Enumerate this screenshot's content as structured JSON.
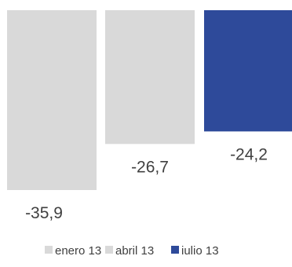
{
  "chart_data": {
    "type": "bar",
    "categories": [
      "enero 13",
      "abril 13",
      "iulio 13"
    ],
    "values": [
      -35.9,
      -26.7,
      -24.2
    ],
    "data_labels": [
      "-35,9",
      "-26,7",
      "-24,2"
    ],
    "colors": [
      "#d9d9d9",
      "#d9d9d9",
      "#2e4a9a"
    ],
    "title": "",
    "xlabel": "",
    "ylabel": "",
    "ylim": [
      -35.9,
      0
    ],
    "grid": false,
    "legend": {
      "placement": "bottom",
      "entries": [
        {
          "label": "enero 13",
          "color": "#d9d9d9"
        },
        {
          "label": "abril 13",
          "color": "#d9d9d9"
        },
        {
          "label": "iulio 13",
          "color": "#2e4a9a"
        }
      ]
    }
  }
}
